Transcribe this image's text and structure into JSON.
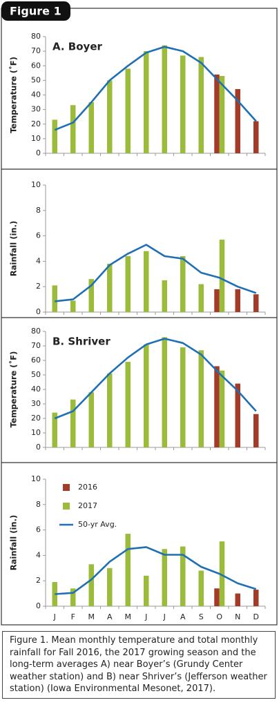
{
  "figure_label": "Figure 1",
  "caption": "Figure 1. Mean monthly temperature and total monthly rainfall for Fall 2016, the 2017 growing season and the long-term averages A) near Boyer’s (Grundy Center weather station) and B) near Shriver’s (Jefferson weather station) (Iowa Environmental Mesonet, 2017).",
  "chart_data": [
    {
      "type": "combo",
      "title": "A. Boyer",
      "y_label": "Temperature (˚F)",
      "categories": [
        null,
        null,
        null,
        null,
        null,
        null,
        null,
        null,
        null,
        null,
        null,
        null
      ],
      "ylim": [
        0,
        80
      ],
      "yticks": [
        0,
        10,
        20,
        30,
        40,
        50,
        60,
        70,
        80
      ],
      "grid": false,
      "series": [
        {
          "kind": "bar",
          "color": "#a23b27",
          "values": [
            null,
            null,
            null,
            null,
            null,
            null,
            null,
            null,
            null,
            54,
            44,
            22
          ]
        },
        {
          "kind": "bar",
          "color": "#9bbb3b",
          "values": [
            23,
            33,
            35,
            50,
            58,
            70,
            74,
            67,
            66,
            53,
            null,
            null
          ]
        },
        {
          "kind": "line",
          "color": "#1f6fb4",
          "values": [
            16,
            21,
            35,
            50,
            60,
            69,
            73,
            70,
            62,
            49,
            36,
            22
          ]
        }
      ]
    },
    {
      "type": "combo",
      "y_label": "Rainfall (in.)",
      "categories": [
        null,
        null,
        null,
        null,
        null,
        null,
        null,
        null,
        null,
        null,
        null,
        null
      ],
      "ylim": [
        0,
        10
      ],
      "yticks": [
        0,
        2,
        4,
        6,
        8,
        10
      ],
      "grid": false,
      "series": [
        {
          "kind": "bar",
          "color": "#a23b27",
          "values": [
            null,
            null,
            null,
            null,
            null,
            null,
            null,
            null,
            null,
            1.8,
            1.8,
            1.4
          ]
        },
        {
          "kind": "bar",
          "color": "#9bbb3b",
          "values": [
            2.1,
            0.9,
            2.6,
            3.8,
            4.4,
            4.8,
            2.5,
            4.4,
            2.2,
            5.7,
            null,
            null
          ]
        },
        {
          "kind": "line",
          "color": "#1f6fb4",
          "values": [
            0.85,
            1.0,
            2.1,
            3.7,
            4.6,
            5.3,
            4.4,
            4.2,
            3.1,
            2.7,
            2.0,
            1.5
          ]
        }
      ]
    },
    {
      "type": "combo",
      "title": "B. Shriver",
      "y_label": "Temperature (˚F)",
      "categories": [
        null,
        null,
        null,
        null,
        null,
        null,
        null,
        null,
        null,
        null,
        null,
        null
      ],
      "ylim": [
        0,
        80
      ],
      "yticks": [
        0,
        10,
        20,
        30,
        40,
        50,
        60,
        70,
        80
      ],
      "grid": false,
      "series": [
        {
          "kind": "bar",
          "color": "#a23b27",
          "values": [
            null,
            null,
            null,
            null,
            null,
            null,
            null,
            null,
            null,
            56,
            44,
            23
          ]
        },
        {
          "kind": "bar",
          "color": "#9bbb3b",
          "values": [
            24,
            33,
            38,
            51,
            59,
            71,
            76,
            69,
            67,
            53,
            null,
            null
          ]
        },
        {
          "kind": "line",
          "color": "#1f6fb4",
          "values": [
            20,
            25,
            38,
            51,
            62,
            71,
            75,
            72,
            64,
            51,
            39,
            25
          ]
        }
      ]
    },
    {
      "type": "combo",
      "y_label": "Rainfall (in.)",
      "categories": [
        "J",
        "F",
        "M",
        "A",
        "M",
        "J",
        "J",
        "A",
        "S",
        "O",
        "N",
        "D"
      ],
      "ylim": [
        0,
        10
      ],
      "yticks": [
        0,
        2,
        4,
        6,
        8,
        10
      ],
      "grid": false,
      "legend": "upper left",
      "series": [
        {
          "name": "2016",
          "kind": "bar",
          "color": "#a23b27",
          "values": [
            null,
            null,
            null,
            null,
            null,
            null,
            null,
            null,
            null,
            1.4,
            1.0,
            1.3
          ]
        },
        {
          "name": "2017",
          "kind": "bar",
          "color": "#9bbb3b",
          "values": [
            1.9,
            1.4,
            3.3,
            3.0,
            5.7,
            2.4,
            4.5,
            4.7,
            2.8,
            5.1,
            null,
            null
          ]
        },
        {
          "name": "50-yr Avg.",
          "kind": "line",
          "color": "#1f6fb4",
          "values": [
            0.95,
            1.05,
            2.1,
            3.5,
            4.5,
            4.65,
            4.05,
            4.05,
            3.1,
            2.55,
            1.8,
            1.35
          ]
        }
      ]
    }
  ]
}
